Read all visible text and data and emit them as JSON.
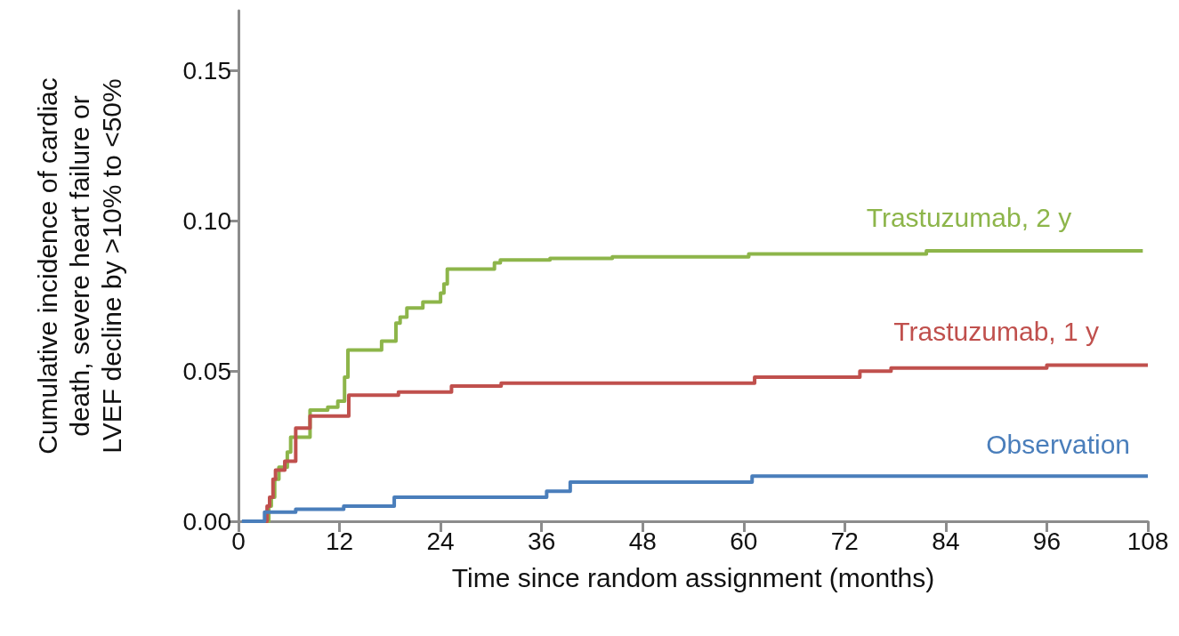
{
  "chart_data": {
    "type": "step",
    "xlabel": "Time since random assignment (months)",
    "ylabel": "Cumulative incidence of cardiac death, severe heart failure or LVEF decline by >10% to <50%",
    "xlim": [
      0,
      108
    ],
    "xticks": [
      0,
      12,
      24,
      36,
      48,
      60,
      72,
      84,
      96,
      108
    ],
    "ylim": [
      0,
      0.17
    ],
    "yticks": [
      {
        "value": 0,
        "label": "0.00"
      },
      {
        "value": 0.05,
        "label": "0.05"
      },
      {
        "value": 0.1,
        "label": "0.10"
      },
      {
        "value": 0.15,
        "label": "0.15"
      }
    ],
    "grid": false,
    "legend": false,
    "marker": "none",
    "line_style": "solid",
    "series": [
      {
        "name": "Trastuzumab, 2 y",
        "color": "#8db54a",
        "x": [
          3.2,
          3.6,
          3.9,
          4.3,
          4.8,
          5.8,
          6.2,
          8.5,
          10.6,
          11.8,
          12.6,
          13.0,
          17.0,
          18.7,
          19.2,
          20.0,
          21.9,
          24.0,
          24.4,
          24.8,
          30.4,
          31.1,
          37.0,
          44.4,
          60.6,
          81.7,
          107.4
        ],
        "values": [
          0,
          0.005,
          0.008,
          0.014,
          0.018,
          0.023,
          0.028,
          0.037,
          0.038,
          0.04,
          0.048,
          0.057,
          0.06,
          0.066,
          0.068,
          0.071,
          0.073,
          0.076,
          0.079,
          0.084,
          0.086,
          0.087,
          0.0875,
          0.088,
          0.089,
          0.09,
          0.09
        ]
      },
      {
        "name": "Trastuzumab, 1 y",
        "color": "#c0504d",
        "x": [
          3.2,
          3.4,
          3.7,
          4.1,
          4.4,
          5.5,
          6.8,
          8.5,
          13.1,
          19.0,
          25.3,
          31.2,
          61.3,
          73.8,
          77.5,
          96.0,
          108
        ],
        "values": [
          0,
          0.005,
          0.008,
          0.014,
          0.017,
          0.02,
          0.031,
          0.035,
          0.042,
          0.043,
          0.045,
          0.046,
          0.048,
          0.05,
          0.051,
          0.052,
          0.052
        ]
      },
      {
        "name": "Observation",
        "color": "#4a7ebb",
        "x": [
          0.4,
          3.1,
          6.8,
          12.5,
          18.5,
          36.6,
          39.4,
          61.0,
          108
        ],
        "values": [
          0,
          0.003,
          0.004,
          0.005,
          0.008,
          0.01,
          0.013,
          0.015,
          0.015
        ]
      }
    ]
  }
}
